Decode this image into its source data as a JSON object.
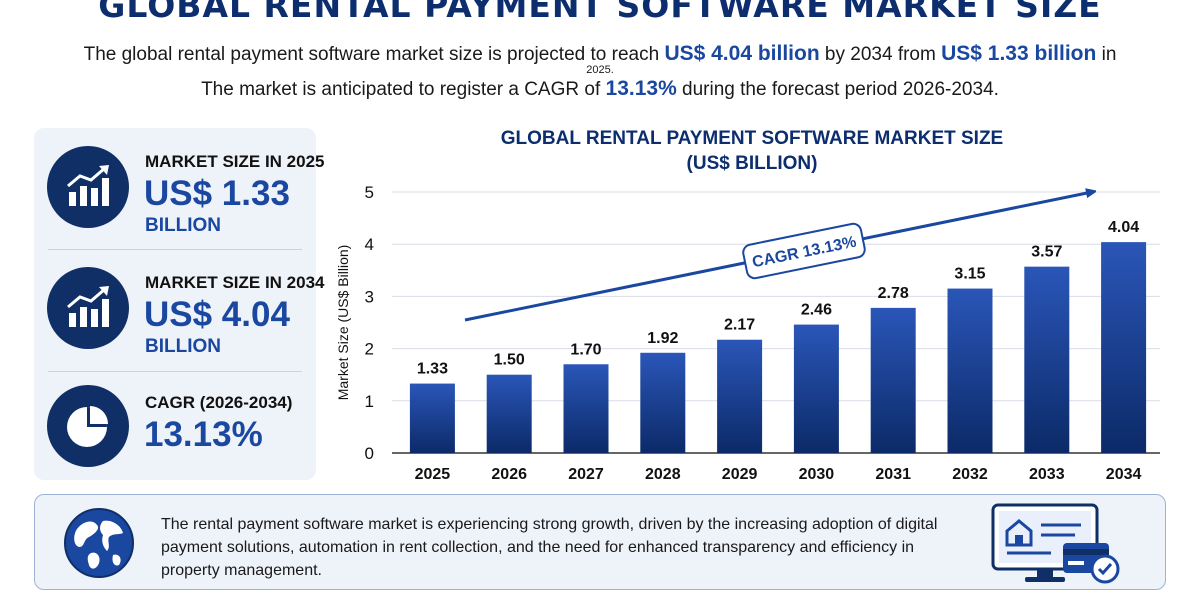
{
  "header": {
    "title": "GLOBAL RENTAL PAYMENT SOFTWARE MARKET SIZE",
    "intro_pre": "The global rental payment software market size is projected to reach ",
    "intro_value_2034": "US$ 4.04 billion",
    "intro_mid": " by 2034 from ",
    "intro_value_2025": "US$ 1.33 billion",
    "intro_post": " in",
    "intro_year": "2025.",
    "cagr_pre": "The market is anticipated to register a CAGR of ",
    "cagr_value": "13.13%",
    "cagr_post": " during the forecast period 2026-2034."
  },
  "kpis": [
    {
      "label": "MARKET SIZE IN 2025",
      "value": "US$ 1.33",
      "unit": "BILLION",
      "icon": "bar-chart-growth-icon"
    },
    {
      "label": "MARKET SIZE IN 2034",
      "value": "US$ 4.04",
      "unit": "BILLION",
      "icon": "bar-chart-growth-icon"
    },
    {
      "label": "CAGR (2026-2034)",
      "value": "13.13%",
      "icon": "pie-chart-icon"
    }
  ],
  "chart_data": {
    "type": "bar",
    "title_line1": "GLOBAL RENTAL PAYMENT SOFTWARE MARKET SIZE",
    "title_line2": "(US$ BILLION)",
    "categories": [
      "2025",
      "2026",
      "2027",
      "2028",
      "2029",
      "2030",
      "2031",
      "2032",
      "2033",
      "2034"
    ],
    "values": [
      1.33,
      1.5,
      1.7,
      1.92,
      2.17,
      2.46,
      2.78,
      3.15,
      3.57,
      4.04
    ],
    "data_labels": [
      "1.33",
      "1.50",
      "1.70",
      "1.92",
      "2.17",
      "2.46",
      "2.78",
      "3.15",
      "3.57",
      "4.04"
    ],
    "ylabel": "Market Size (US$ Billion)",
    "xlabel": "",
    "ylim": [
      0,
      5
    ],
    "yticks": [
      "0",
      "1",
      "2",
      "3",
      "4",
      "5"
    ],
    "grid": true,
    "annotation": "CAGR 13.13%",
    "colors": {
      "bar_top": "#2a56b8",
      "bar_bottom": "#0c2a68",
      "accent": "#1a47a0"
    }
  },
  "summary": {
    "text": "The rental payment software market is experiencing strong growth, driven by the increasing adoption of digital payment solutions, automation in rent collection, and the need for enhanced transparency and efficiency in property management.",
    "globe_icon": "globe-icon",
    "device_icon": "rental-payment-monitor-icon"
  },
  "colors": {
    "navy": "#0d2e6e",
    "accent": "#1a47a0",
    "panel": "#eef2f9"
  }
}
